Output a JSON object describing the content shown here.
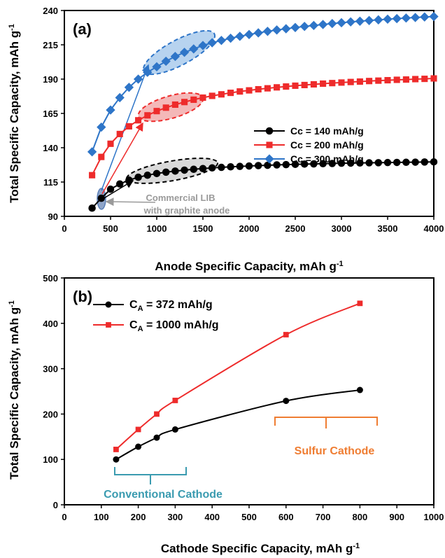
{
  "chart_data": [
    {
      "panel": "(a)",
      "type": "line",
      "xlabel": "Anode Specific Capacity, mAh g",
      "xlabel_sup": "-1",
      "ylabel": "Total Specific Capacity, mAh g",
      "ylabel_sup": "-1",
      "xlim": [
        0,
        4000
      ],
      "ylim": [
        90,
        240
      ],
      "xticks": [
        0,
        500,
        1000,
        1500,
        2000,
        2500,
        3000,
        3500,
        4000
      ],
      "yticks": [
        90,
        115,
        140,
        165,
        190,
        215,
        240
      ],
      "grid": false,
      "legend_position": "center-right",
      "x": [
        300,
        400,
        500,
        600,
        700,
        800,
        900,
        1000,
        1100,
        1200,
        1300,
        1400,
        1500,
        1600,
        1700,
        1800,
        1900,
        2000,
        2100,
        2200,
        2300,
        2400,
        2500,
        2600,
        2700,
        2800,
        2900,
        3000,
        3100,
        3200,
        3300,
        3400,
        3500,
        3600,
        3700,
        3800,
        3900,
        4000
      ],
      "series": [
        {
          "name": "Cc = 140 mAh/g",
          "color": "#000000",
          "marker": "circle",
          "values": [
            96.0,
            103.2,
            109.8,
            113.6,
            116.4,
            118.5,
            120.0,
            121.2,
            122.2,
            123.0,
            123.7,
            124.3,
            124.8,
            125.3,
            125.7,
            126.1,
            126.4,
            126.7,
            127.0,
            127.2,
            127.5,
            127.7,
            127.9,
            128.1,
            128.2,
            128.4,
            128.5,
            128.7,
            128.8,
            128.9,
            129.0,
            129.1,
            129.2,
            129.3,
            129.4,
            129.5,
            129.6,
            129.7
          ]
        },
        {
          "name": "Cc = 200 mAh/g",
          "color": "#ee2b2b",
          "marker": "square",
          "values": [
            120.0,
            133.3,
            142.9,
            150.0,
            155.6,
            160.0,
            163.6,
            166.7,
            169.2,
            171.4,
            173.3,
            175.0,
            176.5,
            177.8,
            178.9,
            180.0,
            181.0,
            181.8,
            182.6,
            183.3,
            184.0,
            184.6,
            185.2,
            185.7,
            186.2,
            186.7,
            187.1,
            187.5,
            187.9,
            188.2,
            188.6,
            188.9,
            189.2,
            189.5,
            189.7,
            190.0,
            190.2,
            190.5
          ]
        },
        {
          "name": "Cc = 300 mAh/g",
          "color": "#2e75c8",
          "marker": "diamond",
          "values": [
            137.0,
            155.0,
            167.5,
            176.5,
            184.0,
            190.0,
            195.0,
            199.0,
            203.0,
            206.5,
            209.5,
            212.0,
            214.5,
            216.5,
            218.2,
            219.8,
            221.2,
            222.5,
            223.7,
            224.8,
            225.8,
            226.7,
            227.6,
            228.4,
            229.1,
            229.8,
            230.5,
            231.1,
            231.7,
            232.2,
            232.7,
            233.2,
            233.7,
            234.1,
            234.5,
            234.9,
            235.3,
            235.6
          ]
        }
      ],
      "annotations": {
        "lib_line1": "Commercial LIB",
        "lib_line2": "with graphite anode"
      }
    },
    {
      "panel": "(b)",
      "type": "line",
      "xlabel": "Cathode Specific Capacity, mAh g",
      "xlabel_sup": "-1",
      "ylabel": "Total Specific Capacity, mAh g",
      "ylabel_sup": "-1",
      "xlim": [
        0,
        1000
      ],
      "ylim": [
        0,
        500
      ],
      "xticks": [
        0,
        100,
        200,
        300,
        400,
        500,
        600,
        700,
        800,
        900,
        1000
      ],
      "yticks": [
        0,
        100,
        200,
        300,
        400,
        500
      ],
      "grid": false,
      "legend_position": "top-left",
      "x": [
        140,
        200,
        250,
        300,
        600,
        800
      ],
      "series": [
        {
          "name_prefix": "C",
          "name_sub": "A",
          "name_suffix": " = 372 mAh/g",
          "color": "#000000",
          "marker": "circle",
          "values": [
            100.0,
            128.0,
            148.0,
            166.0,
            229.0,
            253.0
          ]
        },
        {
          "name_prefix": "C",
          "name_sub": "A",
          "name_suffix": " = 1000 mAh/g",
          "color": "#ee2b2b",
          "marker": "square",
          "values": [
            122.0,
            166.0,
            200.0,
            230.0,
            375.0,
            444.0
          ]
        }
      ],
      "annotations": {
        "sulfur": "Sulfur Cathode",
        "conventional": "Conventional Cathode"
      }
    }
  ],
  "colors": {
    "black_series": "#000000",
    "red_series": "#ee2b2b",
    "blue_series": "#2e75c8",
    "annot_gray": "#9a9a9a",
    "annot_orange": "#ef7d32",
    "annot_teal": "#3a9bb0"
  }
}
